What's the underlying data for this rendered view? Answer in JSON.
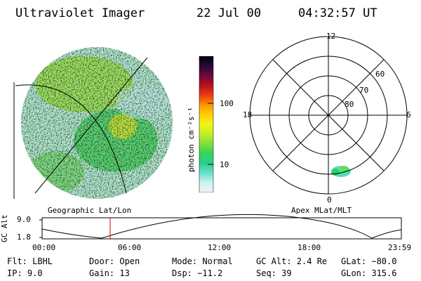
{
  "header": {
    "instrument": "Ultraviolet Imager",
    "date": "22 Jul 00",
    "time": "04:32:57 UT"
  },
  "colors": {
    "background": "#ffffff",
    "text": "#000000",
    "marker": "#cc0000",
    "colorbar": [
      "#f2f2f2",
      "#ccf5f0",
      "#66e0cc",
      "#2ecc90",
      "#33d45a",
      "#7fe03a",
      "#c2ee2a",
      "#f2f21a",
      "#ffd000",
      "#ff9400",
      "#ee3a12",
      "#b8101a",
      "#6a0a3c",
      "#2a0838",
      "#000000"
    ]
  },
  "geo_panel": {
    "label": "Geographic Lat/Lon"
  },
  "colorbar": {
    "unit_label": "photon cm⁻²s⁻¹",
    "ticks": [
      "100",
      "10"
    ]
  },
  "polar_panel": {
    "label": "Apex MLat/MLT",
    "mlt_labels": {
      "top": "12",
      "left": "18",
      "right": "6",
      "bottom": "0"
    },
    "lat_labels": [
      "60",
      "70",
      "80"
    ]
  },
  "orbit_plot": {
    "ylabel": "GC Alt",
    "y_ticks": [
      "9.0",
      "1.8"
    ],
    "x_ticks": [
      "00:00",
      "06:00",
      "12:00",
      "18:00",
      "23:59"
    ]
  },
  "footer": {
    "row1": {
      "flt": "Flt: LBHL",
      "door": "Door: Open",
      "mode": "Mode: Normal",
      "gcalt": "GC Alt: 2.4 Re",
      "glat": "GLat: −80.0"
    },
    "row2": {
      "ip": "IP:  9.0",
      "gain": "Gain: 13",
      "dsp": "Dsp:  −11.2",
      "seq": "Seq: 39",
      "glon": "GLon: 315.6"
    }
  }
}
